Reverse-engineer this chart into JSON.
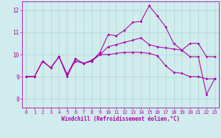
{
  "xlabel": "Windchill (Refroidissement éolien,°C)",
  "background_color": "#d0ecec",
  "grid_color": "#b0d4d4",
  "line_color": "#aa00aa",
  "xlim": [
    -0.5,
    23.5
  ],
  "ylim": [
    7.6,
    12.4
  ],
  "yticks": [
    8,
    9,
    10,
    11,
    12
  ],
  "xticks": [
    0,
    1,
    2,
    3,
    4,
    5,
    6,
    7,
    8,
    9,
    10,
    11,
    12,
    13,
    14,
    15,
    16,
    17,
    18,
    19,
    20,
    21,
    22,
    23
  ],
  "series": [
    [
      9.0,
      9.0,
      9.7,
      9.4,
      9.9,
      9.1,
      9.7,
      9.6,
      9.7,
      10.0,
      10.0,
      10.05,
      10.1,
      10.1,
      10.1,
      10.05,
      9.95,
      9.5,
      9.2,
      9.15,
      9.0,
      9.0,
      8.9,
      8.9
    ],
    [
      9.0,
      9.0,
      9.7,
      9.4,
      9.9,
      9.1,
      9.8,
      9.6,
      9.75,
      10.0,
      10.35,
      10.45,
      10.55,
      10.65,
      10.75,
      10.45,
      10.35,
      10.3,
      10.25,
      10.2,
      10.5,
      10.5,
      9.9,
      9.9
    ],
    [
      9.0,
      9.0,
      9.7,
      9.4,
      9.9,
      9.0,
      9.8,
      9.6,
      9.7,
      10.1,
      10.9,
      10.85,
      11.1,
      11.45,
      11.5,
      12.2,
      11.75,
      11.25,
      10.5,
      10.2,
      9.9,
      9.9,
      8.2,
      8.9
    ]
  ],
  "tick_fontsize": 5.0,
  "xlabel_fontsize": 5.5,
  "marker_size": 2.0,
  "line_width": 0.8
}
